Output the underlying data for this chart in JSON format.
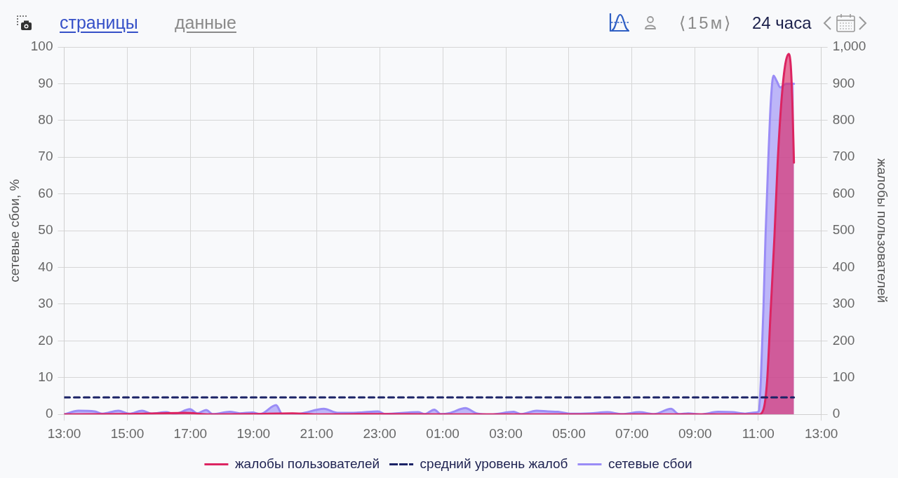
{
  "chart_data": {
    "type": "area",
    "ylabel": "сетевые сбои, %",
    "y2label": "жалобы пользователей",
    "annotations": [
      "страницы",
      "данные",
      "⟨15м⟩",
      "24 часа"
    ],
    "xlim": [
      "--01-01T13:00",
      "--01-02T13:00"
    ],
    "xticks": [
      {
        "value": "--01-01T13:00",
        "label": "13:00"
      },
      {
        "value": "--01-01T15:00",
        "label": "15:00"
      },
      {
        "value": "--01-01T17:00",
        "label": "17:00"
      },
      {
        "value": "--01-01T19:00",
        "label": "19:00"
      },
      {
        "value": "--01-01T21:00",
        "label": "21:00"
      },
      {
        "value": "--01-01T23:00",
        "label": "23:00"
      },
      {
        "value": "--01-02T01:00",
        "label": "01:00"
      },
      {
        "value": "--01-02T03:00",
        "label": "03:00"
      },
      {
        "value": "--01-02T05:00",
        "label": "05:00"
      },
      {
        "value": "--01-02T07:00",
        "label": "07:00"
      },
      {
        "value": "--01-02T09:00",
        "label": "09:00"
      },
      {
        "value": "--01-02T11:00",
        "label": "11:00"
      },
      {
        "value": "--01-02T13:00",
        "label": "13:00"
      }
    ],
    "ylim": [
      0,
      100
    ],
    "yticks": [
      0,
      10,
      20,
      30,
      40,
      50,
      60,
      70,
      80,
      90,
      100
    ],
    "y2lim": [
      0,
      1000
    ],
    "y2ticks": [
      0,
      100,
      200,
      300,
      400,
      500,
      600,
      700,
      800,
      900,
      {
        "value": 1000,
        "label": "1,000"
      }
    ],
    "grid": true,
    "legend": "bottom",
    "series": [
      {
        "name": "жалобы пользователей",
        "axis": "y2",
        "color": "#dc2461",
        "x": [
          "--01-01T13:00",
          "--01-01T15:00",
          "--01-01T16:50",
          "--01-01T17:36",
          "--01-01T19:00",
          "--01-01T20:14",
          "--01-01T21:00",
          "--01-01T23:00",
          "--01-02T01:00",
          "--01-02T03:00",
          "--01-02T05:00",
          "--01-02T07:00",
          "--01-02T09:00",
          "--01-02T11:01",
          "--01-02T11:10",
          "--01-02T11:17",
          "--01-02T11:24",
          "--01-02T11:31",
          "--01-02T11:37",
          "--01-02T11:44",
          "--01-02T11:51",
          "--01-02T11:58",
          "--01-02T12:02",
          "--01-02T12:05",
          "--01-02T12:08"
        ],
        "values": [
          0,
          1,
          4,
          0,
          1,
          3,
          0,
          1,
          0,
          0,
          0,
          0,
          0,
          0,
          13,
          92,
          290,
          487,
          685,
          849,
          948,
          981,
          948,
          849,
          685
        ]
      },
      {
        "name": "средний уровень жалоб",
        "type": "line",
        "axis": "y2",
        "color": "#1b2366",
        "line_style": "dashed",
        "x": [
          "--01-01T13:00",
          "--01-02T12:08"
        ],
        "values": [
          46,
          46
        ]
      },
      {
        "name": "сетевые сбои",
        "color": "#9a8cf6",
        "x": [
          "--01-01T13:00",
          "--01-01T13:27",
          "--01-01T13:58",
          "--01-01T14:13",
          "--01-01T14:43",
          "--01-01T15:04",
          "--01-01T15:28",
          "--01-01T15:47",
          "--01-01T16:14",
          "--01-01T16:30",
          "--01-01T16:59",
          "--01-01T17:13",
          "--01-01T17:30",
          "--01-01T17:42",
          "--01-01T18:15",
          "--01-01T18:34",
          "--01-01T18:58",
          "--01-01T19:13",
          "--01-01T19:43",
          "--01-01T19:55",
          "--01-01T20:29",
          "--01-01T21:14",
          "--01-01T21:40",
          "--01-01T22:23",
          "--01-01T22:57",
          "--01-01T23:10",
          "--01-02T00:13",
          "--01-02T00:26",
          "--01-02T00:44",
          "--01-02T00:56",
          "--01-02T01:14",
          "--01-02T01:43",
          "--01-02T02:04",
          "--01-02T02:32",
          "--01-02T03:15",
          "--01-02T03:28",
          "--01-02T03:59",
          "--01-02T04:20",
          "--01-02T04:39",
          "--01-02T05:02",
          "--01-02T05:40",
          "--01-02T06:13",
          "--01-02T06:41",
          "--01-02T07:14",
          "--01-02T07:42",
          "--01-02T08:14",
          "--01-02T08:29",
          "--01-02T08:47",
          "--01-02T09:10",
          "--01-02T09:44",
          "--01-02T10:11",
          "--01-02T10:35",
          "--01-02T10:55",
          "--01-02T11:01",
          "--01-02T11:05",
          "--01-02T11:10",
          "--01-02T11:14",
          "--01-02T11:19",
          "--01-02T11:24",
          "--01-02T11:29",
          "--01-02T11:35",
          "--01-02T11:42",
          "--01-02T11:53",
          "--01-02T12:08"
        ],
        "values": [
          0,
          1.0,
          0.8,
          0.2,
          1.0,
          0.2,
          1.0,
          0.2,
          0.6,
          0.1,
          1.4,
          0.3,
          1.2,
          0.1,
          0.7,
          0.3,
          0.5,
          0.1,
          2.5,
          0,
          0.2,
          1.5,
          0.4,
          0.5,
          0.8,
          0.1,
          0.6,
          0.1,
          1.3,
          0.1,
          0.4,
          1.7,
          0.3,
          0,
          0.7,
          0.1,
          1.0,
          0.8,
          0.7,
          0.2,
          0.3,
          0.6,
          0.1,
          0.6,
          0.1,
          1.5,
          0.1,
          0.3,
          0,
          0.7,
          0.6,
          0.2,
          0.5,
          0.8,
          9.2,
          29,
          48.7,
          68.5,
          85,
          92.2,
          90.8,
          89,
          90,
          90
        ]
      }
    ]
  }
}
